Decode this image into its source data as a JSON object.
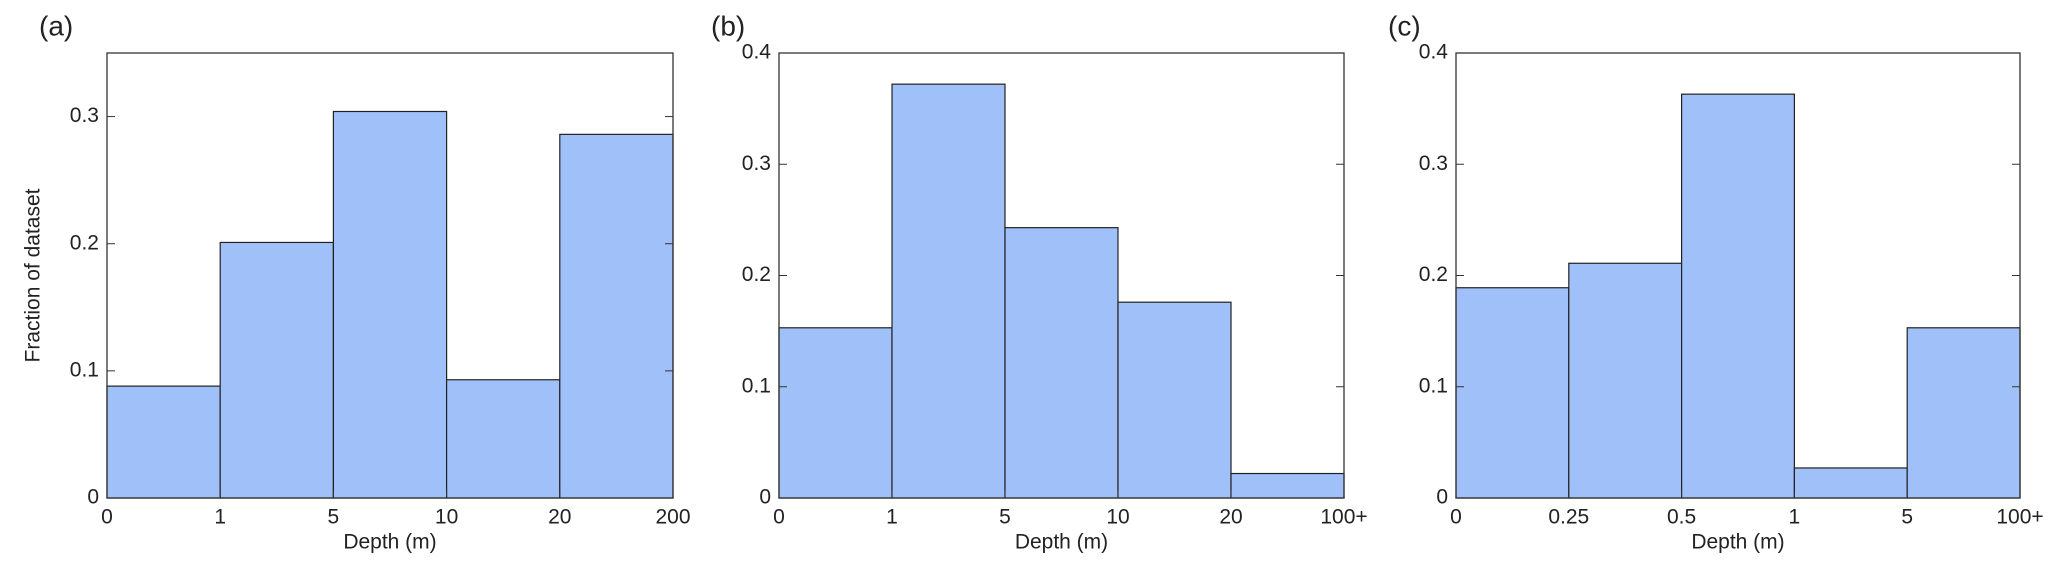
{
  "chart_data": [
    {
      "type": "histogram",
      "panel_label": "(a)",
      "x_label": "Depth (m)",
      "y_label": "Fraction of dataset",
      "bins": [
        "0",
        "1",
        "5",
        "10",
        "20",
        "200"
      ],
      "values": [
        0.088,
        0.201,
        0.304,
        0.093,
        0.286
      ],
      "color": "#a0c0fa",
      "ylim": [
        0,
        0.35
      ],
      "yticks": [
        0,
        0.1,
        0.2,
        0.3
      ]
    },
    {
      "type": "histogram",
      "panel_label": "(b)",
      "x_label": "Depth (m)",
      "bins": [
        "0",
        "1",
        "5",
        "10",
        "20",
        "100+"
      ],
      "values": [
        0.153,
        0.372,
        0.243,
        0.176,
        0.022
      ],
      "color": "#a0c0fa",
      "ylim": [
        0,
        0.4
      ],
      "yticks": [
        0,
        0.1,
        0.2,
        0.3,
        0.4
      ]
    },
    {
      "type": "histogram",
      "panel_label": "(c)",
      "x_label": "Depth (m)",
      "bins": [
        "0",
        "0.25",
        "0.5",
        "1",
        "5",
        "100+"
      ],
      "values": [
        0.189,
        0.211,
        0.363,
        0.027,
        0.153
      ],
      "color": "#a0c0fa",
      "ylim": [
        0,
        0.4
      ],
      "yticks": [
        0,
        0.1,
        0.2,
        0.3,
        0.4
      ]
    }
  ]
}
